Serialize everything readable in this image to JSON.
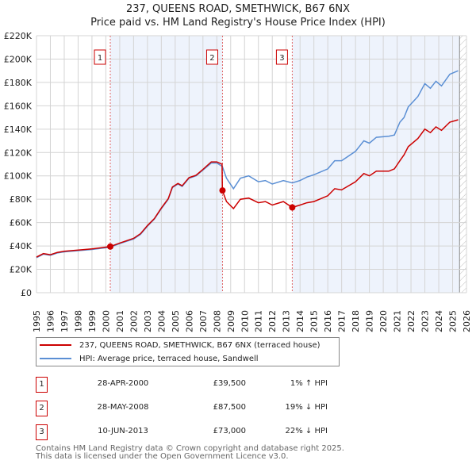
{
  "title": "237, QUEENS ROAD, SMETHWICK, B67 6NX",
  "subtitle": "Price paid vs. HM Land Registry's House Price Index (HPI)",
  "chart_data": {
    "type": "line",
    "title": "237, QUEENS ROAD, SMETHWICK, B67 6NX",
    "subtitle": "Price paid vs. HM Land Registry's House Price Index (HPI)",
    "xlim": [
      1995,
      2026
    ],
    "ylim": [
      0,
      220000
    ],
    "x_ticks": [
      "1995",
      "1996",
      "1997",
      "1998",
      "1999",
      "2000",
      "2001",
      "2002",
      "2003",
      "2004",
      "2005",
      "2006",
      "2007",
      "2008",
      "2009",
      "2010",
      "2011",
      "2012",
      "2013",
      "2014",
      "2015",
      "2016",
      "2017",
      "2018",
      "2019",
      "2020",
      "2021",
      "2022",
      "2023",
      "2024",
      "2025",
      "2026"
    ],
    "y_ticks": [
      {
        "v": 0,
        "label": "£0"
      },
      {
        "v": 20000,
        "label": "£20K"
      },
      {
        "v": 40000,
        "label": "£40K"
      },
      {
        "v": 60000,
        "label": "£60K"
      },
      {
        "v": 80000,
        "label": "£80K"
      },
      {
        "v": 100000,
        "label": "£100K"
      },
      {
        "v": 120000,
        "label": "£120K"
      },
      {
        "v": 140000,
        "label": "£140K"
      },
      {
        "v": 160000,
        "label": "£160K"
      },
      {
        "v": 180000,
        "label": "£180K"
      },
      {
        "v": 200000,
        "label": "£200K"
      },
      {
        "v": 220000,
        "label": "£220K"
      }
    ],
    "grid": true,
    "series": [
      {
        "name": "237, QUEENS ROAD, SMETHWICK, B67 6NX (terraced house)",
        "color": "#cc0000",
        "x": [
          1995,
          1995.5,
          1996,
          1996.5,
          1997,
          1998,
          1999,
          2000.32,
          2001,
          2002,
          2002.5,
          2003,
          2003.5,
          2004,
          2004.5,
          2004.8,
          2005.2,
          2005.5,
          2006,
          2006.5,
          2007,
          2007.6,
          2008,
          2008.38,
          2008.4,
          2008.7,
          2009.2,
          2009.7,
          2010.3,
          2011,
          2011.5,
          2012,
          2012.8,
          2013.44,
          2014,
          2014.5,
          2015,
          2016,
          2016.5,
          2017,
          2018,
          2018.6,
          2019,
          2019.5,
          2020.4,
          2020.8,
          2021.2,
          2021.5,
          2021.8,
          2022.5,
          2023,
          2023.4,
          2023.8,
          2024.2,
          2024.8,
          2025.4
        ],
        "y": [
          30500,
          33500,
          32500,
          34500,
          35500,
          36500,
          37500,
          39500,
          42500,
          46500,
          50500,
          57500,
          63500,
          72500,
          80500,
          90500,
          93500,
          91500,
          98500,
          100500,
          105500,
          112000,
          112000,
          110000,
          87500,
          78000,
          72000,
          80000,
          81000,
          77000,
          78000,
          75000,
          78000,
          73000,
          75000,
          77000,
          78000,
          83000,
          89000,
          88000,
          95000,
          102000,
          100000,
          104000,
          104000,
          106000,
          113000,
          118000,
          125000,
          132000,
          140000,
          137000,
          142000,
          139000,
          146000,
          148000
        ]
      },
      {
        "name": "HPI: Average price, terraced house, Sandwell",
        "color": "#5b8fd4",
        "x": [
          1995,
          1995.5,
          1996,
          1996.5,
          1997,
          1998,
          1999,
          2000.32,
          2001,
          2002,
          2002.5,
          2003,
          2003.5,
          2004,
          2004.5,
          2004.8,
          2005.2,
          2005.5,
          2006,
          2006.5,
          2007,
          2007.6,
          2008,
          2008.4,
          2008.7,
          2009.2,
          2009.7,
          2010.3,
          2011,
          2011.5,
          2012,
          2012.8,
          2013.44,
          2014,
          2014.5,
          2015,
          2016,
          2016.5,
          2017,
          2018,
          2018.6,
          2019,
          2019.5,
          2020.4,
          2020.8,
          2021.2,
          2021.5,
          2021.8,
          2022.5,
          2023,
          2023.4,
          2023.8,
          2024.2,
          2024.8,
          2025.4
        ],
        "y": [
          30000,
          33000,
          32000,
          34000,
          35000,
          36000,
          37000,
          39000,
          42000,
          46000,
          50000,
          57000,
          63000,
          72000,
          80000,
          90000,
          93000,
          91000,
          98000,
          100000,
          105000,
          111000,
          111000,
          108000,
          98000,
          89000,
          98000,
          100000,
          95000,
          96000,
          93000,
          96000,
          94000,
          96000,
          99000,
          101000,
          106000,
          113000,
          113000,
          121000,
          130000,
          128000,
          133000,
          134000,
          135000,
          146000,
          150000,
          159000,
          168000,
          179000,
          175000,
          181000,
          177000,
          187000,
          190000
        ]
      }
    ],
    "sales": [
      {
        "n": "1",
        "x": 2000.32,
        "y": 39500
      },
      {
        "n": "2",
        "x": 2008.41,
        "y": 87500
      },
      {
        "n": "3",
        "x": 2013.44,
        "y": 73000
      }
    ],
    "shaded_ranges": [
      [
        2000.32,
        2008.41
      ],
      [
        2013.44,
        2025.5
      ]
    ],
    "hatched_from": 2025.5,
    "legend_placement": "below"
  },
  "legend": [
    {
      "label": "237, QUEENS ROAD, SMETHWICK, B67 6NX (terraced house)",
      "color": "#cc0000"
    },
    {
      "label": "HPI: Average price, terraced house, Sandwell",
      "color": "#5b8fd4"
    }
  ],
  "transactions": [
    {
      "n": "1",
      "date": "28-APR-2000",
      "price": "£39,500",
      "hpi": "1% ↑ HPI"
    },
    {
      "n": "2",
      "date": "28-MAY-2008",
      "price": "£87,500",
      "hpi": "19% ↓ HPI"
    },
    {
      "n": "3",
      "date": "10-JUN-2013",
      "price": "£73,000",
      "hpi": "22% ↓ HPI"
    }
  ],
  "footer": {
    "line1": "Contains HM Land Registry data © Crown copyright and database right 2025.",
    "line2": "This data is licensed under the Open Government Licence v3.0."
  }
}
